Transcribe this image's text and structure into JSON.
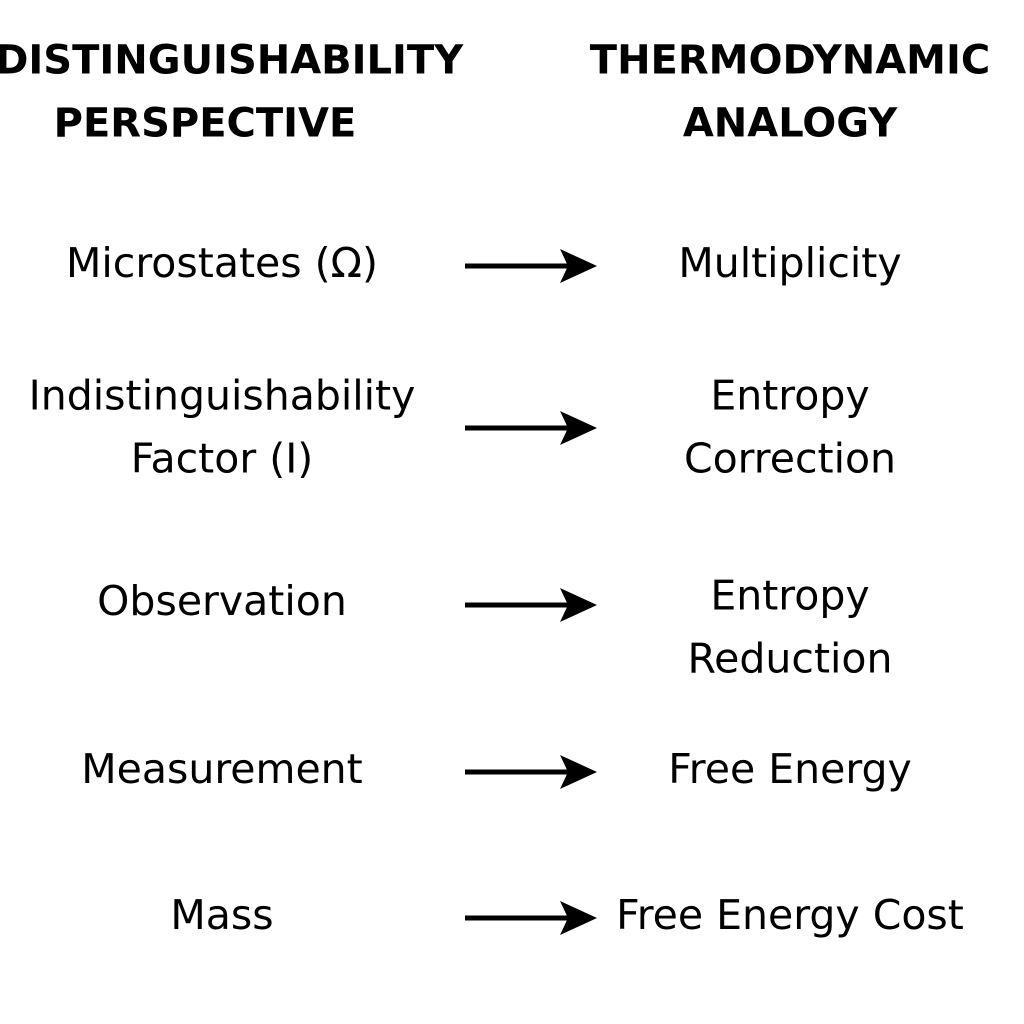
{
  "header": {
    "left": [
      "INDISTINGUISHABILITY",
      "PERSPECTIVE"
    ],
    "right": [
      "THERMODYNAMIC",
      "ANALOGY"
    ]
  },
  "rows": [
    {
      "left": [
        "Microstates (Ω)"
      ],
      "right": [
        "Multiplicity"
      ]
    },
    {
      "left": [
        "Indistinguishability",
        "Factor (I)"
      ],
      "right": [
        "Entropy",
        "Correction"
      ]
    },
    {
      "left": [
        "Observation"
      ],
      "right": [
        "Entropy",
        "Reduction"
      ]
    },
    {
      "left": [
        "Measurement"
      ],
      "right": [
        "Free Energy"
      ]
    },
    {
      "left": [
        "Mass"
      ],
      "right": [
        "Free Energy Cost"
      ]
    }
  ]
}
